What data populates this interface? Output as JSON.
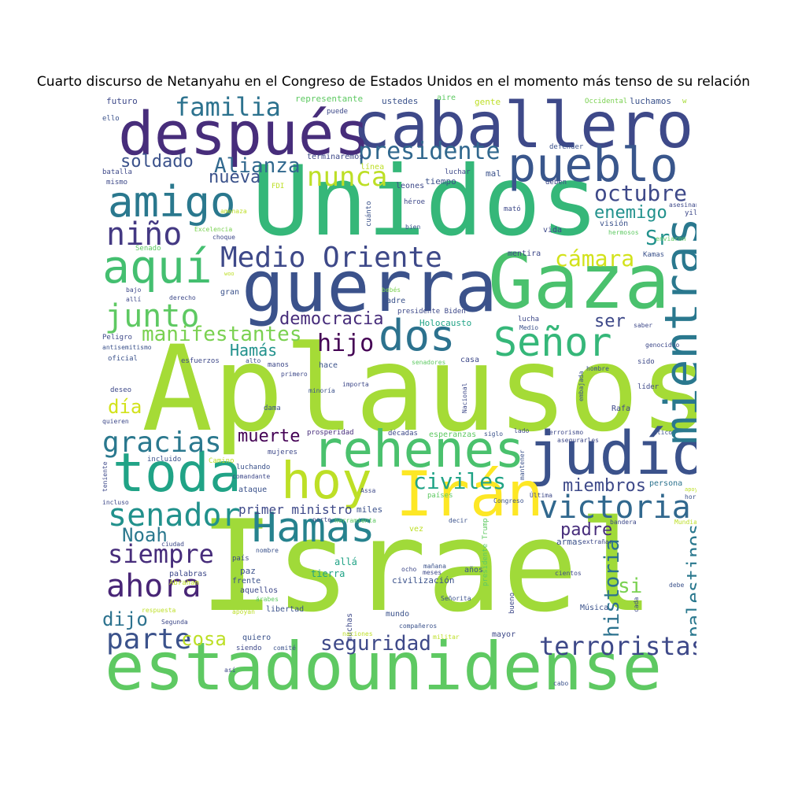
{
  "title": "Cuarto discurso de Netanyahu en el Congreso de Estados Unidos en el momento más tenso de su relación",
  "words": [
    {
      "text": "Israel",
      "color": "#a0da39"
    },
    {
      "text": "Aplausos",
      "color": "#a5db36"
    },
    {
      "text": "Unidos",
      "color": "#35b779"
    },
    {
      "text": "estadounidense",
      "color": "#5ec962"
    },
    {
      "text": "Gaza",
      "color": "#4ac16d"
    },
    {
      "text": "guerra",
      "color": "#3b528b"
    },
    {
      "text": "caballero",
      "color": "#3e4989"
    },
    {
      "text": "después",
      "color": "#472d7b"
    },
    {
      "text": "judío",
      "color": "#3b528b"
    },
    {
      "text": "Irán",
      "color": "#fde725"
    },
    {
      "text": "rehenes",
      "color": "#4ac16d"
    },
    {
      "text": "toda",
      "color": "#20a386"
    },
    {
      "text": "hoy",
      "color": "#bddf26"
    },
    {
      "text": "Hamas",
      "color": "#26828e"
    },
    {
      "text": "pueblo",
      "color": "#39568c"
    },
    {
      "text": "mientras",
      "color": "#2a788e"
    },
    {
      "text": "dos",
      "color": "#2c728e"
    },
    {
      "text": "Señor",
      "color": "#35b779"
    },
    {
      "text": "aquí",
      "color": "#44bf70"
    },
    {
      "text": "amigo",
      "color": "#2a788e"
    },
    {
      "text": "victoria",
      "color": "#31688e"
    },
    {
      "text": "Medio Oriente",
      "color": "#3e4989"
    },
    {
      "text": "familia",
      "color": "#2c728e"
    },
    {
      "text": "presidente",
      "color": "#31688e"
    },
    {
      "text": "junto",
      "color": "#5ec962"
    },
    {
      "text": "niño",
      "color": "#443983"
    },
    {
      "text": "senador",
      "color": "#21918c"
    },
    {
      "text": "gracias",
      "color": "#2a788e"
    },
    {
      "text": "ahora",
      "color": "#482576"
    },
    {
      "text": "terroristas",
      "color": "#3e4989"
    },
    {
      "text": "parte",
      "color": "#3b528b"
    },
    {
      "text": "nunca",
      "color": "#bddf26"
    },
    {
      "text": "octubre",
      "color": "#3e4989"
    },
    {
      "text": "hijo",
      "color": "#440154"
    },
    {
      "text": "siempre",
      "color": "#472d7b"
    },
    {
      "text": "manifestantes",
      "color": "#7ad151"
    },
    {
      "text": "palestinos",
      "color": "#2a788e"
    },
    {
      "text": "historia",
      "color": "#2c728e"
    },
    {
      "text": "seguridad",
      "color": "#3e4989"
    },
    {
      "text": "civiles",
      "color": "#20a386"
    },
    {
      "text": "Alianza",
      "color": "#31688e"
    },
    {
      "text": "cámara",
      "color": "#d2e21b"
    },
    {
      "text": "soldado",
      "color": "#3b528b"
    },
    {
      "text": "enemigo",
      "color": "#21918c"
    },
    {
      "text": "democracia",
      "color": "#472d7b"
    },
    {
      "text": "nueva",
      "color": "#3b528b"
    },
    {
      "text": "Noah",
      "color": "#2a788e"
    },
    {
      "text": "muerte",
      "color": "#440154"
    },
    {
      "text": "miembros",
      "color": "#3e4989"
    },
    {
      "text": "padre",
      "color": "#472d7b"
    },
    {
      "text": "cosa",
      "color": "#bddf26"
    },
    {
      "text": "dijo",
      "color": "#2c728e"
    },
    {
      "text": "día",
      "color": "#d2e21b"
    },
    {
      "text": "Hamás",
      "color": "#21918c"
    },
    {
      "text": "ser",
      "color": "#3e4989"
    },
    {
      "text": "si",
      "color": "#7ad151"
    },
    {
      "text": "Sr",
      "color": "#21918c"
    },
    {
      "text": "primer ministro",
      "color": "#3e4989"
    },
    {
      "text": "representante",
      "color": "#5ec962"
    },
    {
      "text": "terminaremos",
      "color": "#3e4989"
    },
    {
      "text": "aire",
      "color": "#5ec962"
    },
    {
      "text": "ustedes",
      "color": "#3b528b"
    },
    {
      "text": "gente",
      "color": "#bddf26"
    },
    {
      "text": "Occidental",
      "color": "#7ad151"
    },
    {
      "text": "luchamos",
      "color": "#3b528b"
    },
    {
      "text": "w",
      "color": "#a5db36"
    },
    {
      "text": "futuro",
      "color": "#3e4989"
    },
    {
      "text": "ello",
      "color": "#3b528b"
    },
    {
      "text": "puede",
      "color": "#3e4989"
    },
    {
      "text": "defender",
      "color": "#3b528b"
    },
    {
      "text": "batalla",
      "color": "#3e4989"
    },
    {
      "text": "línea",
      "color": "#bddf26"
    },
    {
      "text": "luchar",
      "color": "#3e4989"
    },
    {
      "text": "mal",
      "color": "#3b528b"
    },
    {
      "text": "mismo",
      "color": "#3e4989"
    },
    {
      "text": "FDI",
      "color": "#bddf26"
    },
    {
      "text": "leones",
      "color": "#3e4989"
    },
    {
      "text": "tiempo",
      "color": "#3b528b"
    },
    {
      "text": "deben",
      "color": "#3e4989"
    },
    {
      "text": "asesinan",
      "color": "#3e4989"
    },
    {
      "text": "amenaza",
      "color": "#bddf26"
    },
    {
      "text": "cuánto",
      "color": "#3b528b"
    },
    {
      "text": "héroe",
      "color": "#3e4989"
    },
    {
      "text": "mató",
      "color": "#3e4989"
    },
    {
      "text": "yil",
      "color": "#3e4989"
    },
    {
      "text": "Excelencia",
      "color": "#7ad151"
    },
    {
      "text": "choque",
      "color": "#3e4989"
    },
    {
      "text": "bien",
      "color": "#3b528b"
    },
    {
      "text": "vida",
      "color": "#3e4989"
    },
    {
      "text": "visión",
      "color": "#3b528b"
    },
    {
      "text": "hermosos",
      "color": "#5ec962"
    },
    {
      "text": "enviaron",
      "color": "#5ec962"
    },
    {
      "text": "Senado",
      "color": "#5ec962"
    },
    {
      "text": "mentira",
      "color": "#3e4989"
    },
    {
      "text": "Kamas",
      "color": "#3b528b"
    },
    {
      "text": "woo",
      "color": "#bddf26"
    },
    {
      "text": "bajo",
      "color": "#3e4989"
    },
    {
      "text": "gran",
      "color": "#3b528b"
    },
    {
      "text": "bebés",
      "color": "#7ad151"
    },
    {
      "text": "allí",
      "color": "#3e4989"
    },
    {
      "text": "derecho",
      "color": "#3e4989"
    },
    {
      "text": "madre",
      "color": "#3b528b"
    },
    {
      "text": "presidente Biden",
      "color": "#3e4989"
    },
    {
      "text": "Holocausto",
      "color": "#20a386"
    },
    {
      "text": "lucha",
      "color": "#3e4989"
    },
    {
      "text": "saber",
      "color": "#3e4989"
    },
    {
      "text": "Medio",
      "color": "#3b528b"
    },
    {
      "text": "Peligro",
      "color": "#3e4989"
    },
    {
      "text": "antisemitismo",
      "color": "#3b528b"
    },
    {
      "text": "alto",
      "color": "#3b528b"
    },
    {
      "text": "genocidio",
      "color": "#3e4989"
    },
    {
      "text": "oficial",
      "color": "#3b528b"
    },
    {
      "text": "esfuerzos",
      "color": "#3e4989"
    },
    {
      "text": "manos",
      "color": "#3e4989"
    },
    {
      "text": "hace",
      "color": "#3b528b"
    },
    {
      "text": "senadores",
      "color": "#5ec962"
    },
    {
      "text": "casa",
      "color": "#3e4989"
    },
    {
      "text": "sido",
      "color": "#3e4989"
    },
    {
      "text": "hombre",
      "color": "#3b528b"
    },
    {
      "text": "primero",
      "color": "#3e4989"
    },
    {
      "text": "importa",
      "color": "#3e4989"
    },
    {
      "text": "minoría",
      "color": "#3b528b"
    },
    {
      "text": "deseo",
      "color": "#3e4989"
    },
    {
      "text": "Nacional",
      "color": "#3e4989"
    },
    {
      "text": "embajada",
      "color": "#3b528b"
    },
    {
      "text": "líder",
      "color": "#3e4989"
    },
    {
      "text": "dama",
      "color": "#3b528b"
    },
    {
      "text": "Rafa",
      "color": "#3e4989"
    },
    {
      "text": "quieren",
      "color": "#3e4989"
    },
    {
      "text": "prosperidad",
      "color": "#472d7b"
    },
    {
      "text": "décadas",
      "color": "#3e4989"
    },
    {
      "text": "esperanzas",
      "color": "#5ec962"
    },
    {
      "text": "siglo",
      "color": "#3b528b"
    },
    {
      "text": "lado",
      "color": "#3e4989"
    },
    {
      "text": "terrorismo",
      "color": "#3e4989"
    },
    {
      "text": "ático",
      "color": "#3b528b"
    },
    {
      "text": "asegurarles",
      "color": "#3e4989"
    },
    {
      "text": "incluido",
      "color": "#3b528b"
    },
    {
      "text": "mujeres",
      "color": "#3e4989"
    },
    {
      "text": "Camino",
      "color": "#bddf26"
    },
    {
      "text": "luchando",
      "color": "#3b528b"
    },
    {
      "text": "comandante",
      "color": "#3e4989"
    },
    {
      "text": "mantener",
      "color": "#3b528b"
    },
    {
      "text": "persona",
      "color": "#2c728e"
    },
    {
      "text": "teniente",
      "color": "#3e4989"
    },
    {
      "text": "ataque",
      "color": "#3b528b"
    },
    {
      "text": "Assa",
      "color": "#3e4989"
    },
    {
      "text": "países",
      "color": "#5ec962"
    },
    {
      "text": "Congreso",
      "color": "#3b528b"
    },
    {
      "text": "Última",
      "color": "#3e4989"
    },
    {
      "text": "apoyo",
      "color": "#bddf26"
    },
    {
      "text": "hora",
      "color": "#3b528b"
    },
    {
      "text": "incluso",
      "color": "#3e4989"
    },
    {
      "text": "miles",
      "color": "#3b528b"
    },
    {
      "text": "norte",
      "color": "#3e4989"
    },
    {
      "text": "herramienta",
      "color": "#5ec962"
    },
    {
      "text": "vez",
      "color": "#bddf26"
    },
    {
      "text": "decir",
      "color": "#3b528b"
    },
    {
      "text": "presidente Trump",
      "color": "#5ec962"
    },
    {
      "text": "bandera",
      "color": "#3e4989"
    },
    {
      "text": "Mundial",
      "color": "#bddf26"
    },
    {
      "text": "armas",
      "color": "#3b528b"
    },
    {
      "text": "ciudad",
      "color": "#3e4989"
    },
    {
      "text": "extrañar",
      "color": "#3e4989"
    },
    {
      "text": "nombre",
      "color": "#3b528b"
    },
    {
      "text": "país",
      "color": "#3e4989"
    },
    {
      "text": "allá",
      "color": "#20a386"
    },
    {
      "text": "paz",
      "color": "#3b528b"
    },
    {
      "text": "palabras",
      "color": "#3e4989"
    },
    {
      "text": "frente",
      "color": "#3b528b"
    },
    {
      "text": "aquellos",
      "color": "#3e4989"
    },
    {
      "text": "Abraham",
      "color": "#bddf26"
    },
    {
      "text": "árabes",
      "color": "#5ec962"
    },
    {
      "text": "ocho",
      "color": "#3e4989"
    },
    {
      "text": "mañana",
      "color": "#3b528b"
    },
    {
      "text": "meses",
      "color": "#3e4989"
    },
    {
      "text": "años",
      "color": "#3b528b"
    },
    {
      "text": "tierra",
      "color": "#20a386"
    },
    {
      "text": "civilización",
      "color": "#3b528b"
    },
    {
      "text": "cientos",
      "color": "#3e4989"
    },
    {
      "text": "debe",
      "color": "#3b528b"
    },
    {
      "text": "respuesta",
      "color": "#bddf26"
    },
    {
      "text": "apoyan",
      "color": "#bddf26"
    },
    {
      "text": "libertad",
      "color": "#3b528b"
    },
    {
      "text": "muchas",
      "color": "#3e4989"
    },
    {
      "text": "mundo",
      "color": "#3b528b"
    },
    {
      "text": "bueno",
      "color": "#3e4989"
    },
    {
      "text": "Señorita",
      "color": "#3b528b"
    },
    {
      "text": "cada",
      "color": "#3e4989"
    },
    {
      "text": "Música",
      "color": "#3b528b"
    },
    {
      "text": "Segunda",
      "color": "#3e4989"
    },
    {
      "text": "compañeros",
      "color": "#3b528b"
    },
    {
      "text": "militar",
      "color": "#bddf26"
    },
    {
      "text": "naciones",
      "color": "#bddf26"
    },
    {
      "text": "mayor",
      "color": "#3e4989"
    },
    {
      "text": "quiero",
      "color": "#3b528b"
    },
    {
      "text": "siendo",
      "color": "#3e4989"
    },
    {
      "text": "comité",
      "color": "#3b528b"
    },
    {
      "text": "así",
      "color": "#3e4989"
    },
    {
      "text": "cabo",
      "color": "#3b528b"
    }
  ]
}
